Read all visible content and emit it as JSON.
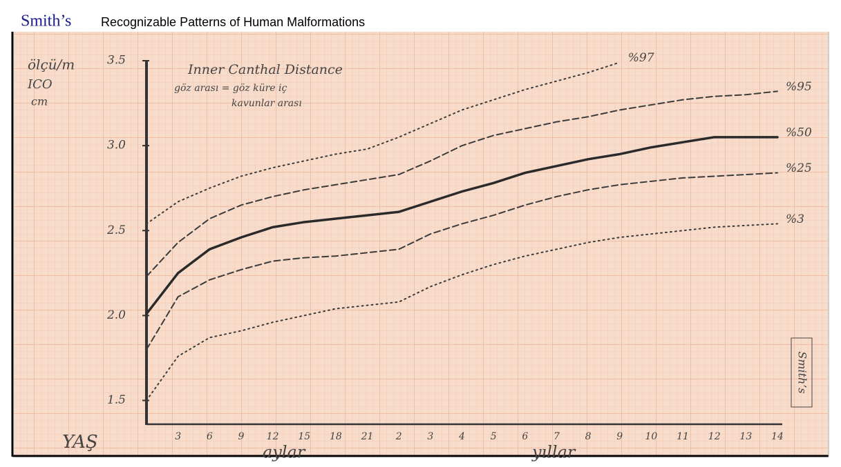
{
  "header": {
    "brand": "Smith’s",
    "title": "Recognizable Patterns of Human Malformations"
  },
  "chart_data": {
    "type": "line",
    "title": "Inner Canthal Distance",
    "subtitle": [
      "göz arası = göz küre iç",
      "kavunlar arası"
    ],
    "y_label": [
      "ölçü/m",
      "ICO",
      "cm"
    ],
    "x_label": "YAŞ",
    "x_groups": [
      "aylar",
      "yıllar"
    ],
    "stamp": "Smith’s",
    "categories": [
      null,
      "3",
      "6",
      "9",
      "12",
      "15",
      "18",
      "21",
      "2",
      "3",
      "4",
      "5",
      "6",
      "7",
      "8",
      "9",
      "10",
      "11",
      "12",
      "13",
      "14"
    ],
    "ylim": [
      1.36,
      3.5
    ],
    "yticks": [
      {
        "value": 1.5,
        "label": "1.5"
      },
      {
        "value": 2,
        "label": "2.0"
      },
      {
        "value": 2.5,
        "label": "2.5"
      },
      {
        "value": 3,
        "label": "3.0"
      },
      {
        "value": 3.5,
        "label": "3.5"
      }
    ],
    "series": [
      {
        "name": "%97",
        "color": "#3a3a3a",
        "style": "dotted",
        "values": [
          2.54,
          2.67,
          2.75,
          2.82,
          2.87,
          2.91,
          2.95,
          2.98,
          3.05,
          3.13,
          3.21,
          3.27,
          3.33,
          3.38,
          3.43,
          3.49,
          null,
          null,
          null,
          null,
          null
        ]
      },
      {
        "name": "%95",
        "color": "#3a3a3a",
        "style": "dashed",
        "values": [
          2.23,
          2.43,
          2.57,
          2.65,
          2.7,
          2.74,
          2.77,
          2.8,
          2.83,
          2.91,
          3.0,
          3.06,
          3.1,
          3.14,
          3.17,
          3.21,
          3.24,
          3.27,
          3.29,
          3.3,
          3.32
        ]
      },
      {
        "name": "%50",
        "color": "#2a2a2a",
        "style": "solid",
        "values": [
          2.01,
          2.25,
          2.39,
          2.46,
          2.52,
          2.55,
          2.57,
          2.59,
          2.61,
          2.67,
          2.73,
          2.78,
          2.84,
          2.88,
          2.92,
          2.95,
          2.99,
          3.02,
          3.05,
          3.05,
          3.05
        ]
      },
      {
        "name": "%25",
        "color": "#3a3a3a",
        "style": "dashed",
        "values": [
          1.8,
          2.11,
          2.21,
          2.27,
          2.32,
          2.34,
          2.35,
          2.37,
          2.39,
          2.48,
          2.54,
          2.59,
          2.65,
          2.7,
          2.74,
          2.77,
          2.79,
          2.81,
          2.82,
          2.83,
          2.84
        ]
      },
      {
        "name": "%3",
        "color": "#3a3a3a",
        "style": "dotted",
        "values": [
          1.5,
          1.76,
          1.87,
          1.91,
          1.96,
          2.0,
          2.04,
          2.06,
          2.08,
          2.17,
          2.24,
          2.3,
          2.35,
          2.39,
          2.43,
          2.46,
          2.48,
          2.5,
          2.52,
          2.53,
          2.54
        ]
      }
    ]
  }
}
